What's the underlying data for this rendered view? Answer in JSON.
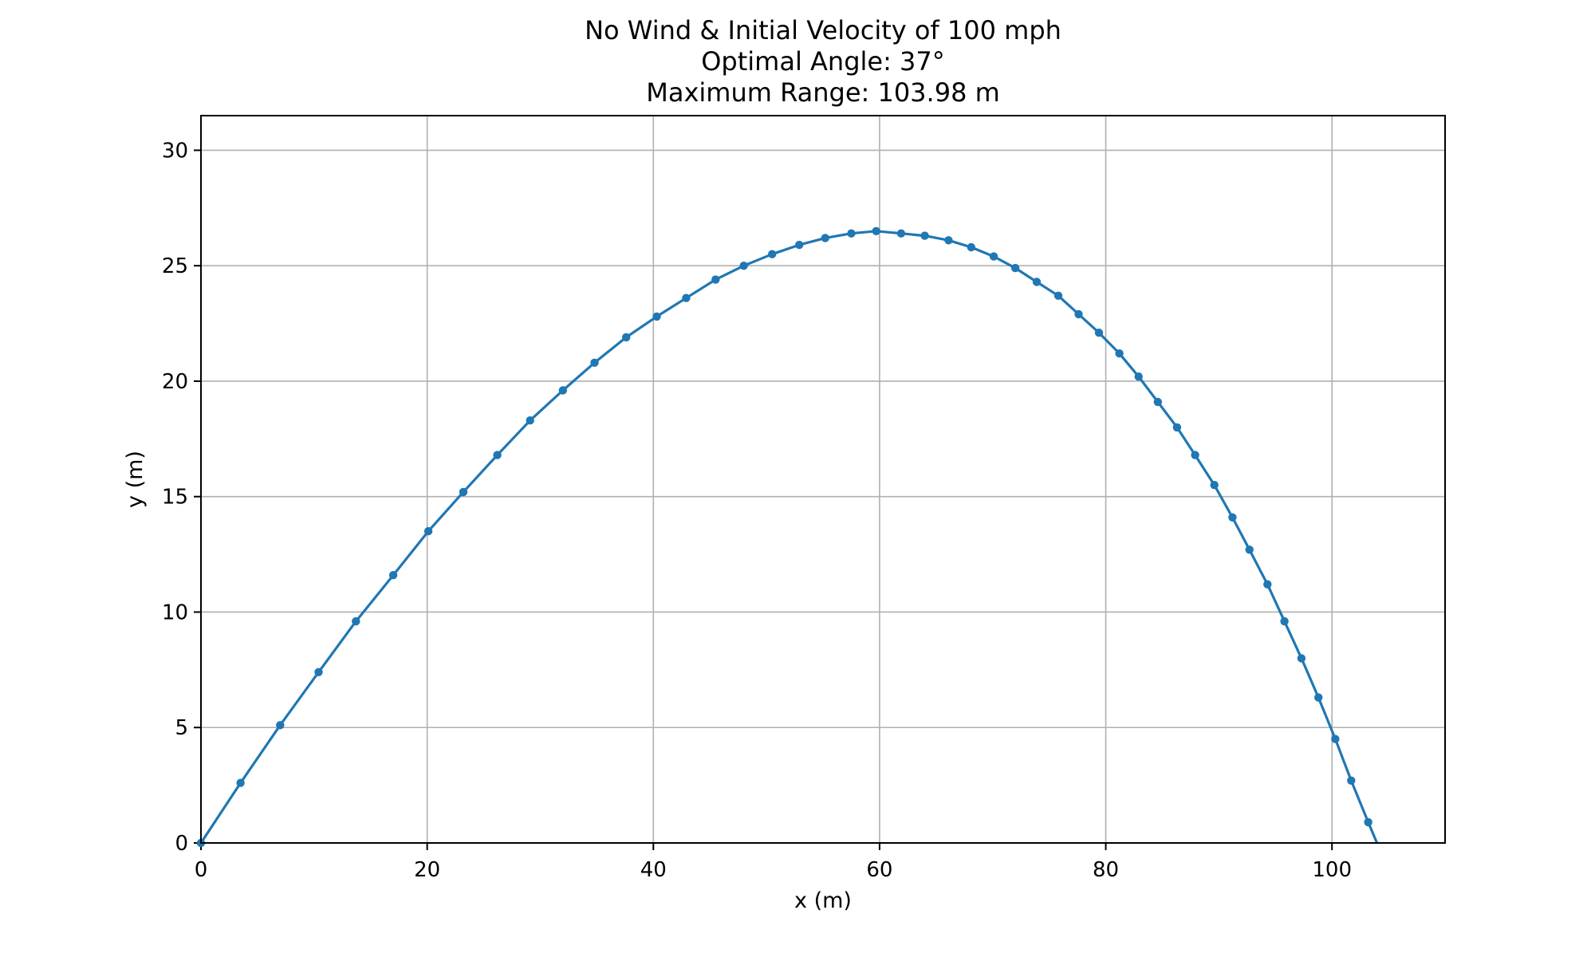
{
  "chart_data": {
    "type": "line",
    "title_lines": [
      "No Wind & Initial Velocity of 100 mph",
      "Optimal Angle: 37°",
      "Maximum Range: 103.98 m"
    ],
    "xlabel": "x (m)",
    "ylabel": "y (m)",
    "xlim": [
      0,
      110
    ],
    "ylim": [
      0,
      31.5
    ],
    "xticks": [
      0,
      20,
      40,
      60,
      80,
      100
    ],
    "yticks": [
      0,
      5,
      10,
      15,
      20,
      25,
      30
    ],
    "grid": true,
    "line_color": "#1f77b4",
    "grid_color": "#b0b0b0",
    "series": [
      {
        "marker": "dot",
        "x": [
          0,
          3.5,
          7.0,
          10.4,
          13.7,
          17.0,
          20.1,
          23.2,
          26.2,
          29.1,
          32.0,
          34.8,
          37.6,
          40.3,
          42.9,
          45.5,
          48.0,
          50.5,
          52.9,
          55.2,
          57.5,
          59.7,
          61.9,
          64.0,
          66.1,
          68.1,
          70.1,
          72.0,
          73.9,
          75.8,
          77.6,
          79.4,
          81.2,
          82.9,
          84.6,
          86.3,
          87.9,
          89.6,
          91.2,
          92.7,
          94.3,
          95.8,
          97.3,
          98.8,
          100.3,
          101.7,
          103.2
        ],
        "y": [
          0,
          2.6,
          5.1,
          7.4,
          9.6,
          11.6,
          13.5,
          15.2,
          16.8,
          18.3,
          19.6,
          20.8,
          21.9,
          22.8,
          23.6,
          24.4,
          25.0,
          25.5,
          25.9,
          26.2,
          26.4,
          26.5,
          26.4,
          26.3,
          26.1,
          25.8,
          25.4,
          24.9,
          24.3,
          23.7,
          22.9,
          22.1,
          21.2,
          20.2,
          19.1,
          18.0,
          16.8,
          15.5,
          14.1,
          12.7,
          11.2,
          9.6,
          8.0,
          6.3,
          4.5,
          2.7,
          0.9
        ]
      }
    ],
    "end_point": {
      "x": 103.98,
      "y": 0
    }
  }
}
